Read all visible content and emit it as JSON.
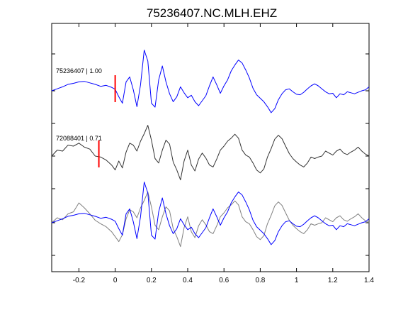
{
  "chart_data": {
    "type": "line",
    "title": "75236407.NC.MLH.EHZ",
    "xlabel": "",
    "ylabel": "",
    "xlim": [
      -0.35,
      1.4
    ],
    "x_ticks": [
      "-0.2",
      "0",
      "0.2",
      "0.4",
      "0.6",
      "0.8",
      "1",
      "1.2",
      "1.4"
    ],
    "grid": false,
    "legend": "none",
    "traces": [
      {
        "label": "75236407 | 1.00",
        "color": "#0000ff",
        "pick_time": 0.0,
        "x": [
          -0.35,
          -0.32,
          -0.29,
          -0.26,
          -0.23,
          -0.2,
          -0.17,
          -0.14,
          -0.11,
          -0.08,
          -0.05,
          -0.02,
          0.0,
          0.02,
          0.04,
          0.06,
          0.08,
          0.1,
          0.12,
          0.14,
          0.16,
          0.18,
          0.2,
          0.22,
          0.24,
          0.26,
          0.28,
          0.3,
          0.32,
          0.34,
          0.36,
          0.38,
          0.4,
          0.42,
          0.44,
          0.46,
          0.48,
          0.5,
          0.52,
          0.54,
          0.56,
          0.58,
          0.6,
          0.62,
          0.64,
          0.66,
          0.68,
          0.7,
          0.72,
          0.74,
          0.76,
          0.78,
          0.8,
          0.82,
          0.84,
          0.86,
          0.88,
          0.9,
          0.92,
          0.94,
          0.96,
          0.98,
          1.0,
          1.02,
          1.04,
          1.06,
          1.08,
          1.1,
          1.12,
          1.14,
          1.16,
          1.18,
          1.2,
          1.22,
          1.24,
          1.26,
          1.28,
          1.3,
          1.32,
          1.34,
          1.36,
          1.38,
          1.4
        ],
        "y": [
          0,
          0.04,
          0.08,
          0.13,
          0.15,
          0.18,
          0.19,
          0.16,
          0.13,
          0.09,
          0.11,
          0.07,
          0.03,
          -0.12,
          -0.25,
          0.18,
          0.28,
          0.02,
          -0.32,
          0.12,
          0.82,
          0.6,
          -0.25,
          -0.33,
          0.22,
          0.5,
          0.18,
          -0.06,
          -0.22,
          -0.12,
          0.08,
          -0.04,
          -0.14,
          -0.09,
          -0.22,
          -0.3,
          -0.2,
          -0.1,
          0.1,
          0.28,
          0.12,
          -0.05,
          0.1,
          0.22,
          0.4,
          0.52,
          0.62,
          0.56,
          0.42,
          0.26,
          0.05,
          -0.08,
          -0.15,
          -0.22,
          -0.32,
          -0.44,
          -0.36,
          -0.18,
          -0.06,
          0.02,
          0.04,
          -0.02,
          -0.07,
          -0.08,
          -0.03,
          0.04,
          0.1,
          0.14,
          0.1,
          0.04,
          -0.02,
          -0.06,
          -0.05,
          -0.14,
          -0.06,
          -0.08,
          -0.02,
          -0.04,
          -0.06,
          -0.03,
          0.0,
          0.02,
          0.08
        ]
      },
      {
        "label": "72088401 | 0.71",
        "color": "#333333",
        "pick_time": -0.09,
        "x": [
          -0.35,
          -0.32,
          -0.29,
          -0.26,
          -0.23,
          -0.2,
          -0.17,
          -0.14,
          -0.11,
          -0.08,
          -0.05,
          -0.02,
          0.0,
          0.02,
          0.04,
          0.06,
          0.08,
          0.1,
          0.12,
          0.14,
          0.16,
          0.18,
          0.2,
          0.22,
          0.24,
          0.26,
          0.28,
          0.3,
          0.32,
          0.34,
          0.36,
          0.38,
          0.4,
          0.42,
          0.44,
          0.46,
          0.48,
          0.5,
          0.52,
          0.54,
          0.56,
          0.58,
          0.6,
          0.62,
          0.64,
          0.66,
          0.68,
          0.7,
          0.72,
          0.74,
          0.76,
          0.78,
          0.8,
          0.82,
          0.84,
          0.86,
          0.88,
          0.9,
          0.92,
          0.94,
          0.96,
          0.98,
          1.0,
          1.02,
          1.04,
          1.06,
          1.08,
          1.1,
          1.12,
          1.14,
          1.16,
          1.18,
          1.2,
          1.22,
          1.24,
          1.26,
          1.28,
          1.3,
          1.32,
          1.34,
          1.36,
          1.38,
          1.4
        ],
        "y": [
          0,
          0.12,
          0.1,
          0.22,
          0.2,
          0.26,
          0.18,
          0.14,
          0.0,
          -0.02,
          -0.08,
          -0.18,
          -0.28,
          -0.1,
          -0.24,
          0.08,
          0.26,
          0.22,
          0.1,
          0.3,
          0.45,
          0.62,
          0.32,
          -0.05,
          -0.14,
          0.12,
          0.32,
          0.24,
          -0.12,
          -0.28,
          -0.48,
          -0.1,
          0.12,
          -0.18,
          -0.3,
          -0.06,
          0.06,
          -0.04,
          -0.18,
          -0.22,
          -0.06,
          0.12,
          0.2,
          0.3,
          0.36,
          0.44,
          0.36,
          0.12,
          0.02,
          -0.02,
          -0.14,
          -0.28,
          -0.34,
          -0.26,
          -0.02,
          0.15,
          0.34,
          0.42,
          0.35,
          0.2,
          0.05,
          -0.05,
          -0.12,
          -0.18,
          -0.22,
          -0.14,
          -0.02,
          -0.05,
          -0.02,
          0.0,
          0.1,
          0.06,
          0.02,
          0.1,
          0.14,
          0.06,
          0.03,
          0.08,
          0.12,
          0.18,
          0.1,
          0.04,
          0.0
        ]
      },
      {
        "label": "",
        "color": "#808080",
        "pick_time": null,
        "x": [
          -0.35,
          -0.32,
          -0.29,
          -0.26,
          -0.23,
          -0.2,
          -0.17,
          -0.14,
          -0.11,
          -0.08,
          -0.05,
          -0.02,
          0.0,
          0.02,
          0.04,
          0.06,
          0.08,
          0.1,
          0.12,
          0.14,
          0.16,
          0.18,
          0.2,
          0.22,
          0.24,
          0.26,
          0.28,
          0.3,
          0.32,
          0.34,
          0.36,
          0.38,
          0.4,
          0.42,
          0.44,
          0.46,
          0.48,
          0.5,
          0.52,
          0.54,
          0.56,
          0.58,
          0.6,
          0.62,
          0.64,
          0.66,
          0.68,
          0.7,
          0.72,
          0.74,
          0.76,
          0.78,
          0.8,
          0.82,
          0.84,
          0.86,
          0.88,
          0.9,
          0.92,
          0.94,
          0.96,
          0.98,
          1.0,
          1.02,
          1.04,
          1.06,
          1.08,
          1.1,
          1.12,
          1.14,
          1.16,
          1.18,
          1.2,
          1.22,
          1.24,
          1.26,
          1.28,
          1.3,
          1.32,
          1.34,
          1.36,
          1.38,
          1.4
        ],
        "y": [
          0,
          0.1,
          0.06,
          0.18,
          0.22,
          0.4,
          0.3,
          0.18,
          0.05,
          -0.02,
          -0.08,
          -0.18,
          -0.28,
          -0.38,
          -0.24,
          0.08,
          0.26,
          0.22,
          0.1,
          0.3,
          0.45,
          0.62,
          0.32,
          -0.05,
          -0.14,
          0.12,
          0.32,
          0.24,
          -0.12,
          -0.28,
          -0.48,
          -0.1,
          0.12,
          -0.18,
          -0.3,
          -0.06,
          0.06,
          -0.04,
          -0.18,
          -0.22,
          -0.06,
          0.12,
          0.2,
          0.3,
          0.36,
          0.44,
          0.36,
          0.12,
          0.02,
          -0.02,
          -0.14,
          -0.28,
          -0.34,
          -0.26,
          -0.02,
          0.15,
          0.34,
          0.42,
          0.35,
          0.2,
          0.05,
          -0.05,
          -0.12,
          -0.18,
          -0.22,
          -0.14,
          -0.02,
          -0.05,
          -0.02,
          0.0,
          0.1,
          0.06,
          0.02,
          0.1,
          0.14,
          0.06,
          0.03,
          0.08,
          0.12,
          0.18,
          0.1,
          0.04,
          0.0
        ]
      },
      {
        "label": "",
        "color": "#0000ff",
        "pick_time": null,
        "x": [
          -0.35,
          -0.32,
          -0.29,
          -0.26,
          -0.23,
          -0.2,
          -0.17,
          -0.14,
          -0.11,
          -0.08,
          -0.05,
          -0.02,
          0.0,
          0.02,
          0.04,
          0.06,
          0.08,
          0.1,
          0.12,
          0.14,
          0.16,
          0.18,
          0.2,
          0.22,
          0.24,
          0.26,
          0.28,
          0.3,
          0.32,
          0.34,
          0.36,
          0.38,
          0.4,
          0.42,
          0.44,
          0.46,
          0.48,
          0.5,
          0.52,
          0.54,
          0.56,
          0.58,
          0.6,
          0.62,
          0.64,
          0.66,
          0.68,
          0.7,
          0.72,
          0.74,
          0.76,
          0.78,
          0.8,
          0.82,
          0.84,
          0.86,
          0.88,
          0.9,
          0.92,
          0.94,
          0.96,
          0.98,
          1.0,
          1.02,
          1.04,
          1.06,
          1.08,
          1.1,
          1.12,
          1.14,
          1.16,
          1.18,
          1.2,
          1.22,
          1.24,
          1.26,
          1.28,
          1.3,
          1.32,
          1.34,
          1.36,
          1.38,
          1.4
        ],
        "y": [
          0,
          0.04,
          0.08,
          0.13,
          0.15,
          0.18,
          0.19,
          0.16,
          0.13,
          0.09,
          0.11,
          0.07,
          0.03,
          -0.12,
          -0.25,
          0.18,
          0.28,
          0.02,
          -0.32,
          0.12,
          0.82,
          0.6,
          -0.25,
          -0.33,
          0.22,
          0.5,
          0.18,
          -0.06,
          -0.22,
          -0.12,
          0.08,
          -0.04,
          -0.14,
          -0.09,
          -0.22,
          -0.3,
          -0.2,
          -0.1,
          0.1,
          0.28,
          0.12,
          -0.05,
          0.1,
          0.22,
          0.4,
          0.52,
          0.62,
          0.56,
          0.42,
          0.26,
          0.05,
          -0.08,
          -0.15,
          -0.22,
          -0.32,
          -0.44,
          -0.36,
          -0.18,
          -0.06,
          0.02,
          0.04,
          -0.02,
          -0.07,
          -0.08,
          -0.03,
          0.04,
          0.1,
          0.14,
          0.1,
          0.04,
          -0.02,
          -0.06,
          -0.05,
          -0.14,
          -0.06,
          -0.08,
          -0.02,
          -0.04,
          -0.06,
          -0.03,
          0.0,
          0.02,
          0.08
        ]
      }
    ]
  }
}
